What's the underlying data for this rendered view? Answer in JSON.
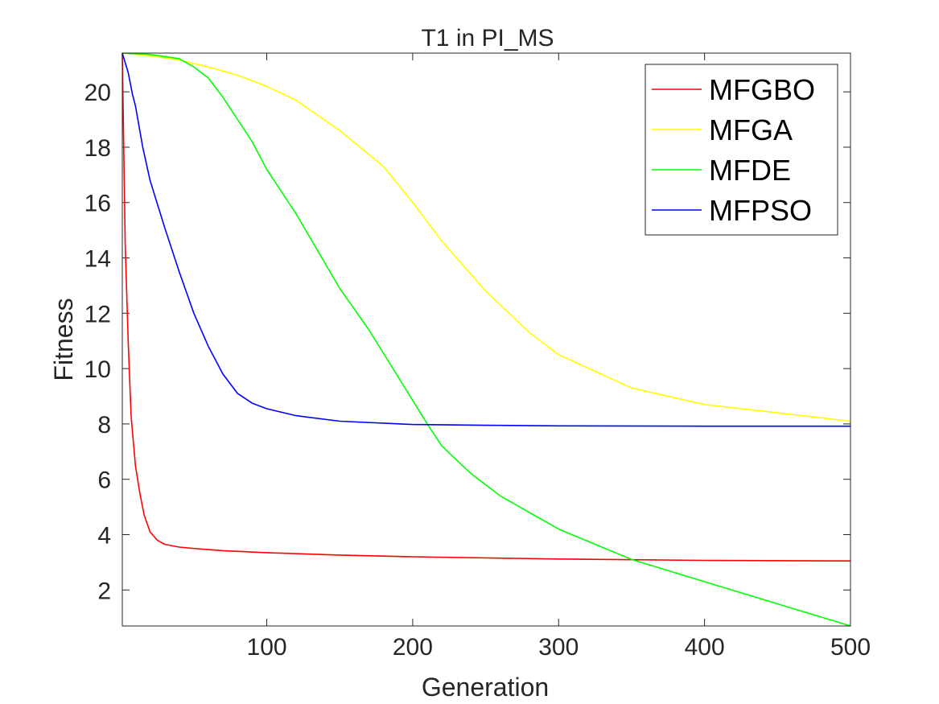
{
  "chart_data": {
    "type": "line",
    "title": "T1 in PI_MS",
    "xlabel": "Generation",
    "ylabel": "Fitness",
    "xlim": [
      1,
      500
    ],
    "ylim": [
      0.7,
      21.4
    ],
    "xticks": [
      100,
      200,
      300,
      400,
      500
    ],
    "yticks": [
      2,
      4,
      6,
      8,
      10,
      12,
      14,
      16,
      18,
      20
    ],
    "grid": false,
    "legend": "top-right",
    "series": [
      {
        "name": "MFGBO",
        "color": "#ff0000",
        "x": [
          1,
          3,
          5,
          7,
          10,
          13,
          16,
          20,
          25,
          30,
          40,
          50,
          70,
          100,
          150,
          200,
          300,
          400,
          500
        ],
        "y": [
          21.4,
          14.5,
          11.0,
          8.3,
          6.5,
          5.5,
          4.7,
          4.1,
          3.8,
          3.65,
          3.55,
          3.5,
          3.42,
          3.35,
          3.26,
          3.2,
          3.12,
          3.07,
          3.05
        ]
      },
      {
        "name": "MFGA",
        "color": "#ffff00",
        "x": [
          1,
          20,
          40,
          60,
          80,
          100,
          120,
          150,
          180,
          200,
          220,
          250,
          280,
          300,
          350,
          400,
          450,
          500
        ],
        "y": [
          21.4,
          21.3,
          21.15,
          20.9,
          20.6,
          20.2,
          19.7,
          18.6,
          17.3,
          16.0,
          14.6,
          12.8,
          11.3,
          10.5,
          9.3,
          8.7,
          8.4,
          8.1
        ]
      },
      {
        "name": "MFDE",
        "color": "#00ff00",
        "x": [
          1,
          20,
          40,
          50,
          60,
          70,
          80,
          90,
          100,
          120,
          140,
          150,
          170,
          190,
          210,
          220,
          240,
          260,
          280,
          300,
          350,
          400,
          450,
          500
        ],
        "y": [
          21.4,
          21.35,
          21.2,
          20.9,
          20.5,
          19.8,
          19.0,
          18.2,
          17.2,
          15.6,
          13.8,
          12.9,
          11.4,
          9.7,
          8.0,
          7.2,
          6.2,
          5.4,
          4.8,
          4.2,
          3.1,
          2.3,
          1.5,
          0.7
        ]
      },
      {
        "name": "MFPSO",
        "color": "#0000ff",
        "x": [
          1,
          5,
          8,
          10,
          15,
          20,
          30,
          40,
          50,
          60,
          70,
          80,
          90,
          100,
          120,
          150,
          200,
          250,
          300,
          400,
          500
        ],
        "y": [
          21.4,
          20.7,
          19.9,
          19.5,
          18.0,
          16.8,
          15.1,
          13.5,
          12.0,
          10.8,
          9.8,
          9.1,
          8.75,
          8.55,
          8.3,
          8.1,
          7.98,
          7.95,
          7.93,
          7.92,
          7.92
        ]
      }
    ]
  }
}
